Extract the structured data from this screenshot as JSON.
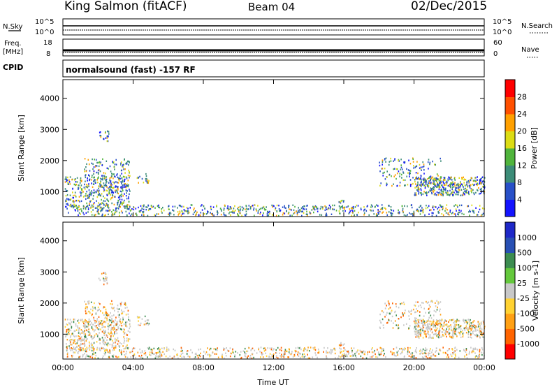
{
  "header": {
    "station": "King Salmon (fitACF)",
    "beam": "Beam 04",
    "date": "02/Dec/2015"
  },
  "noise_panel": {
    "left_label": "N.Sky",
    "left_ticks": [
      "10^5",
      "10^0"
    ],
    "right_ticks": [
      "10^5",
      "10^0"
    ],
    "right_label": "N.Search"
  },
  "freq_panel": {
    "left_label_1": "Freq.",
    "left_label_2": "[MHz]",
    "left_ticks": [
      "18",
      "8"
    ],
    "right_ticks": [
      "60",
      "0"
    ],
    "right_label": "Nave"
  },
  "cpid": {
    "label": "CPID",
    "text": "normalsound (fast) -157 RF"
  },
  "chart_data": [
    {
      "type": "heatmap",
      "name_shown": "Power",
      "xlabel": "",
      "ylabel": "Slant Range [km]",
      "x_ticks": [
        "00:00",
        "04:00",
        "08:00",
        "12:00",
        "16:00",
        "20:00",
        "00:00"
      ],
      "y_ticks": [
        "1000",
        "2000",
        "3000",
        "4000"
      ],
      "ylim": [
        200,
        4600
      ],
      "colorbar": {
        "label": "Power [dB]",
        "ticks": [
          "4",
          "8",
          "12",
          "16",
          "20",
          "24",
          "28"
        ],
        "colors": [
          "#1414ff",
          "#2850c8",
          "#3c8c78",
          "#50b43c",
          "#dcdc14",
          "#ffa000",
          "#ff5000",
          "#ff0000"
        ]
      }
    },
    {
      "type": "heatmap",
      "name_shown": "Velocity",
      "xlabel": "Time UT",
      "ylabel": "Slant Range [km]",
      "x_ticks": [
        "00:00",
        "04:00",
        "08:00",
        "12:00",
        "16:00",
        "20:00",
        "00:00"
      ],
      "y_ticks": [
        "1000",
        "2000",
        "3000",
        "4000"
      ],
      "ylim": [
        200,
        4600
      ],
      "colorbar": {
        "label": "Velocity [m s-1]",
        "ticks": [
          "1000",
          "500",
          "100",
          "25",
          "-25",
          "-100",
          "-500",
          "-1000"
        ],
        "colors": [
          "#1e28c8",
          "#2850b4",
          "#3c8c50",
          "#64c83c",
          "#c8c8c8",
          "#ffd232",
          "#ffa014",
          "#ff6400",
          "#ff0000"
        ]
      }
    }
  ]
}
